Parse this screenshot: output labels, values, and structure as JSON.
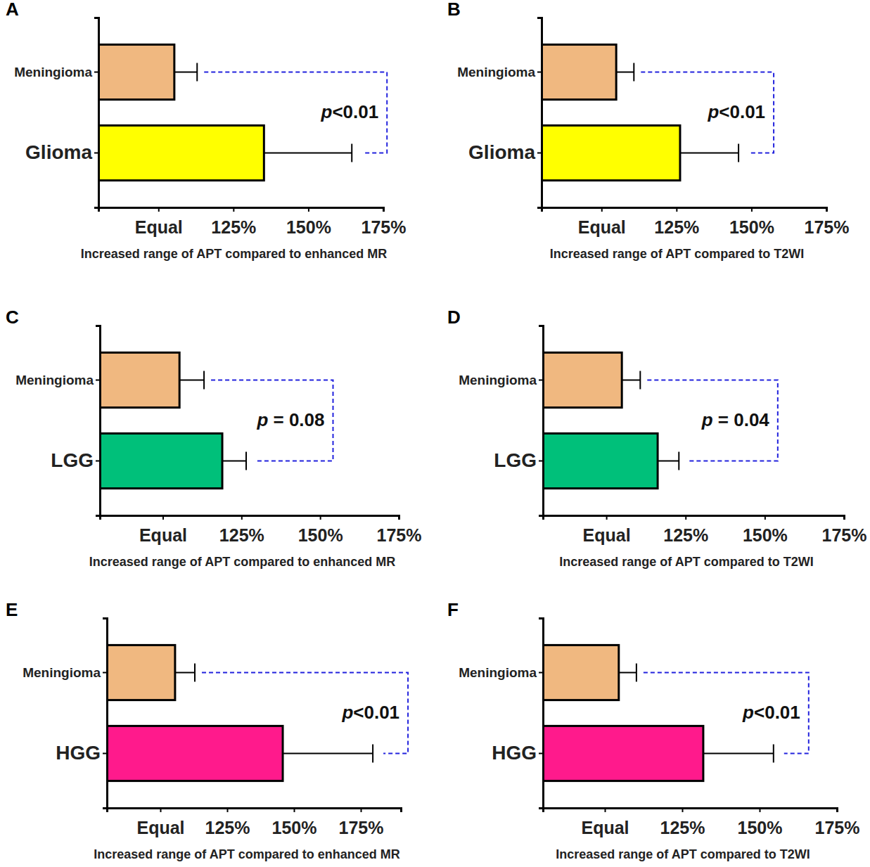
{
  "chart_data": [
    {
      "type": "bar",
      "orientation": "horizontal",
      "panel": "A",
      "categories": [
        "Meningioma",
        "Glioma"
      ],
      "values": [
        105.3,
        135.2
      ],
      "errors": [
        7.6,
        29.3
      ],
      "colors": [
        "#f0b880",
        "#ffff00"
      ],
      "xlabel": "Increased range of APT compared to enhanced MR",
      "xlim": [
        80,
        175
      ],
      "xticks": [
        {
          "value": 100,
          "label": "Equal"
        },
        {
          "value": 125,
          "label": "125%"
        },
        {
          "value": 150,
          "label": "150%"
        },
        {
          "value": 175,
          "label": "175%"
        }
      ],
      "annotation": "p<0.01"
    },
    {
      "type": "bar",
      "orientation": "horizontal",
      "panel": "B",
      "categories": [
        "Meningioma",
        "Glioma"
      ],
      "values": [
        104.9,
        126.2
      ],
      "errors": [
        5.9,
        19.5
      ],
      "colors": [
        "#f0b880",
        "#ffff00"
      ],
      "xlabel": "Increased range of APT compared to T2WI",
      "xlim": [
        80,
        175
      ],
      "xticks": [
        {
          "value": 100,
          "label": "Equal"
        },
        {
          "value": 125,
          "label": "125%"
        },
        {
          "value": 150,
          "label": "150%"
        },
        {
          "value": 175,
          "label": "175%"
        }
      ],
      "annotation": "p<0.01"
    },
    {
      "type": "bar",
      "orientation": "horizontal",
      "panel": "C",
      "categories": [
        "Meningioma",
        "LGG"
      ],
      "values": [
        105.3,
        118.9
      ],
      "errors": [
        7.8,
        7.6
      ],
      "colors": [
        "#f0b880",
        "#00c07a"
      ],
      "xlabel": "Increased range of APT compared to enhanced MR",
      "xlim": [
        80,
        175
      ],
      "xticks": [
        {
          "value": 100,
          "label": "Equal"
        },
        {
          "value": 125,
          "label": "125%"
        },
        {
          "value": 150,
          "label": "150%"
        },
        {
          "value": 175,
          "label": "175%"
        }
      ],
      "annotation": "p = 0.08"
    },
    {
      "type": "bar",
      "orientation": "horizontal",
      "panel": "D",
      "categories": [
        "Meningioma",
        "LGG"
      ],
      "values": [
        104.9,
        116.2
      ],
      "errors": [
        5.8,
        6.7
      ],
      "colors": [
        "#f0b880",
        "#00c07a"
      ],
      "xlabel": "Increased range of APT compared to T2WI",
      "xlim": [
        80,
        175
      ],
      "xticks": [
        {
          "value": 100,
          "label": "Equal"
        },
        {
          "value": 125,
          "label": "125%"
        },
        {
          "value": 150,
          "label": "150%"
        },
        {
          "value": 175,
          "label": "175%"
        }
      ],
      "annotation": "p = 0.04"
    },
    {
      "type": "bar",
      "orientation": "horizontal",
      "panel": "E",
      "categories": [
        "Meningioma",
        "HGG"
      ],
      "values": [
        105.5,
        145.8
      ],
      "errors": [
        7.4,
        33.7
      ],
      "colors": [
        "#f0b880",
        "#ff1a8c"
      ],
      "xlabel": "Increased range of APT compared to enhanced MR",
      "xlim": [
        80,
        190
      ],
      "xticks": [
        {
          "value": 100,
          "label": "Equal"
        },
        {
          "value": 125,
          "label": "125%"
        },
        {
          "value": 150,
          "label": "150%"
        },
        {
          "value": 175,
          "label": "175%"
        }
      ],
      "annotation": "p<0.01"
    },
    {
      "type": "bar",
      "orientation": "horizontal",
      "panel": "F",
      "categories": [
        "Meningioma",
        "HGG"
      ],
      "values": [
        104.5,
        131.8
      ],
      "errors": [
        5.7,
        22.7
      ],
      "colors": [
        "#f0b880",
        "#ff1a8c"
      ],
      "xlabel": "Increased range of APT compared to T2WI",
      "xlim": [
        80,
        175
      ],
      "xticks": [
        {
          "value": 100,
          "label": "Equal"
        },
        {
          "value": 125,
          "label": "125%"
        },
        {
          "value": 150,
          "label": "150%"
        },
        {
          "value": 175,
          "label": "175%"
        }
      ],
      "annotation": "p<0.01"
    }
  ]
}
